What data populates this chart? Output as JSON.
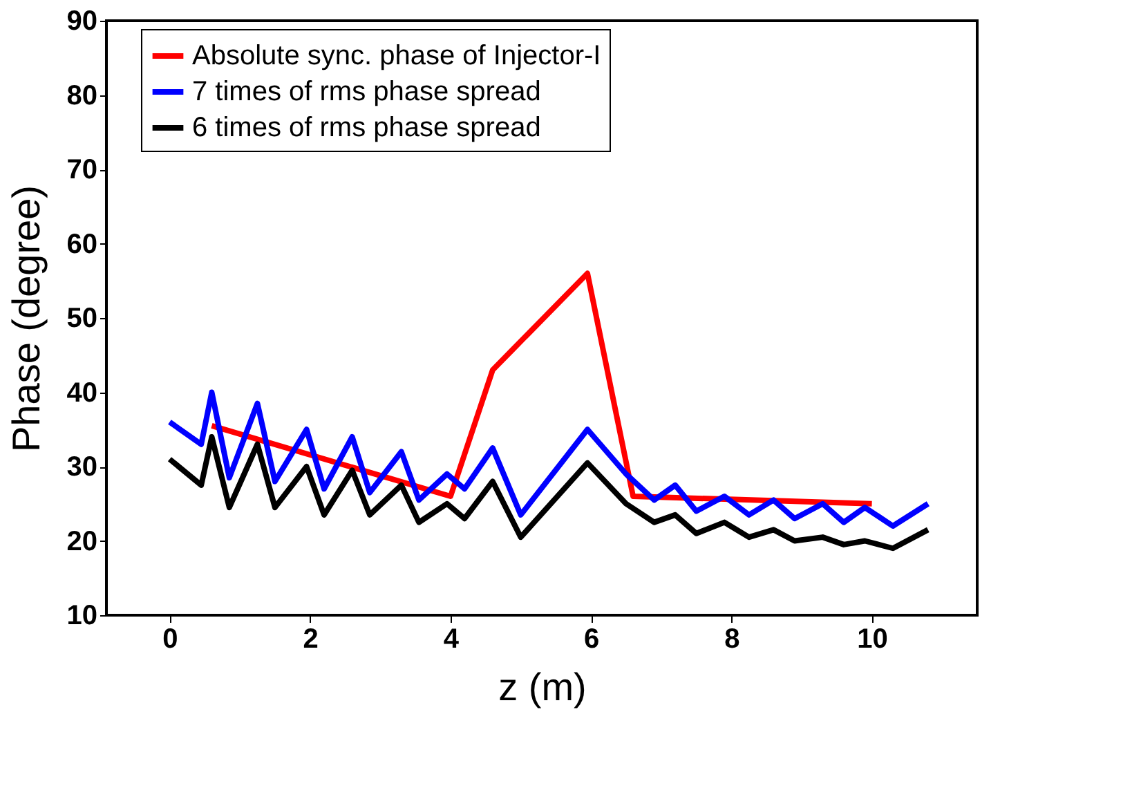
{
  "chart_data": {
    "type": "line",
    "xlabel": "z (m)",
    "ylabel": "Phase (degree)",
    "xlim": [
      -0.9,
      11.5
    ],
    "xticks": [
      0,
      2,
      4,
      6,
      8,
      10
    ],
    "ylim": [
      10,
      90
    ],
    "yticks": [
      10,
      20,
      30,
      40,
      50,
      60,
      70,
      80,
      90
    ],
    "grid": false,
    "legend": "top",
    "line_style": "solid",
    "marker": "none",
    "series": [
      {
        "name": "Absolute sync. phase of Injector-I",
        "color": "#ff0000",
        "x": [
          0.6,
          4.0,
          4.6,
          5.95,
          6.6,
          10.0
        ],
        "values": [
          35.5,
          26,
          43,
          56,
          26,
          25
        ]
      },
      {
        "name": "7 times of rms phase spread",
        "color": "#0000ff",
        "x": [
          0,
          0.45,
          0.6,
          0.85,
          1.25,
          1.5,
          1.95,
          2.2,
          2.6,
          2.85,
          3.3,
          3.55,
          3.95,
          4.2,
          4.6,
          5.0,
          5.95,
          6.5,
          6.9,
          7.2,
          7.5,
          7.9,
          8.25,
          8.6,
          8.9,
          9.3,
          9.6,
          9.9,
          10.3,
          10.8
        ],
        "values": [
          36,
          33,
          40,
          28.5,
          38.5,
          28,
          35,
          27,
          34,
          26.5,
          32,
          25.5,
          29,
          27,
          32.5,
          23.5,
          35,
          29,
          25.5,
          27.5,
          24,
          26,
          23.5,
          25.5,
          23,
          25,
          22.5,
          24.5,
          22,
          25
        ]
      },
      {
        "name": "6 times of rms phase spread",
        "color": "#000000",
        "x": [
          0,
          0.45,
          0.6,
          0.85,
          1.25,
          1.5,
          1.95,
          2.2,
          2.6,
          2.85,
          3.3,
          3.55,
          3.95,
          4.2,
          4.6,
          5.0,
          5.95,
          6.5,
          6.9,
          7.2,
          7.5,
          7.9,
          8.25,
          8.6,
          8.9,
          9.3,
          9.6,
          9.9,
          10.3,
          10.8
        ],
        "values": [
          31,
          27.5,
          34,
          24.5,
          33,
          24.5,
          30,
          23.5,
          29.5,
          23.5,
          27.5,
          22.5,
          25,
          23,
          28,
          20.5,
          30.5,
          25,
          22.5,
          23.5,
          21,
          22.5,
          20.5,
          21.5,
          20,
          20.5,
          19.5,
          20,
          19,
          21.5
        ]
      }
    ]
  }
}
